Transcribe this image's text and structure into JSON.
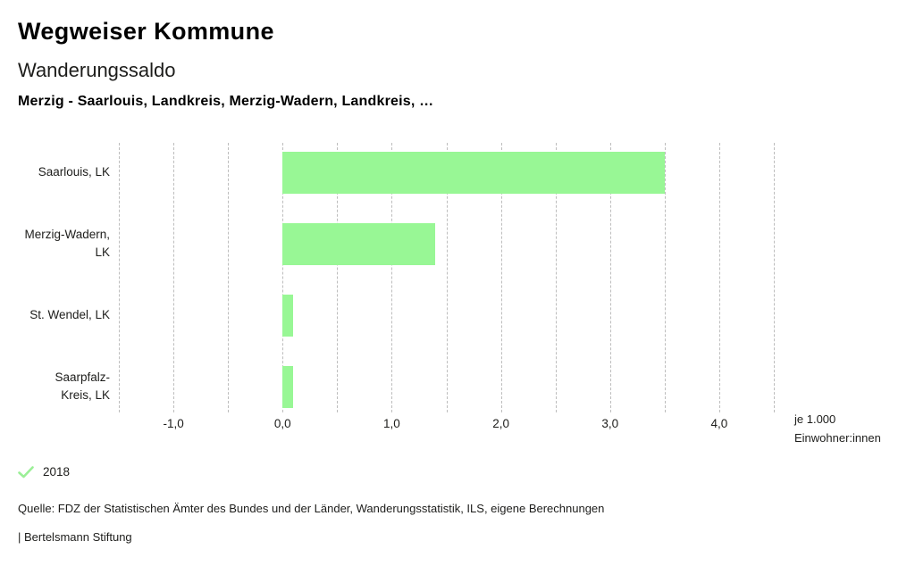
{
  "header": {
    "app_title": "Wegweiser Kommune",
    "chart_title": "Wanderungssaldo",
    "subtitle": "Merzig - Saarlouis, Landkreis, Merzig-Wadern, Landkreis, …"
  },
  "chart_data": {
    "type": "bar",
    "orientation": "horizontal",
    "title": "Wanderungssaldo",
    "subtitle": "Merzig - Saarlouis, Landkreis, Merzig-Wadern, Landkreis, …",
    "categories": [
      "Saarlouis, LK",
      "Merzig-Wadern, LK",
      "St. Wendel, LK",
      "Saarpfalz-Kreis, LK"
    ],
    "categories_display": [
      "Saarlouis, LK",
      "Merzig-Wadern,\nLK",
      "St. Wendel, LK",
      "Saarpfalz-\nKreis, LK"
    ],
    "series": [
      {
        "name": "2018",
        "values": [
          3.5,
          1.4,
          0.1,
          0.1
        ]
      }
    ],
    "xlabel": "je 1.000 Einwohner:innen",
    "ylabel": "",
    "xlim": [
      -1.5,
      4.5
    ],
    "gridline_step": 0.5,
    "grid": true,
    "x_major_ticks": [
      -1,
      0,
      1,
      2,
      3,
      4
    ],
    "x_tick_labels": [
      "-1,0",
      "0,0",
      "1,0",
      "2,0",
      "3,0",
      "4,0"
    ],
    "legend_position": "bottom",
    "bar_color": "#98f795"
  },
  "axis_note": "je 1.000\nEinwohner:innen",
  "legend": {
    "items": [
      {
        "label": "2018",
        "icon": "check-icon",
        "color": "#9bef97"
      }
    ]
  },
  "footer": {
    "source": "Quelle: FDZ der Statistischen Ämter des Bundes und der Länder, Wanderungsstatistik, ILS, eigene Berechnungen",
    "attribution": "| Bertelsmann Stiftung"
  },
  "colors": {
    "bar": "#98f795",
    "grid": "#bdbdbd",
    "text": "#1d1d1b",
    "background": "#ffffff"
  }
}
